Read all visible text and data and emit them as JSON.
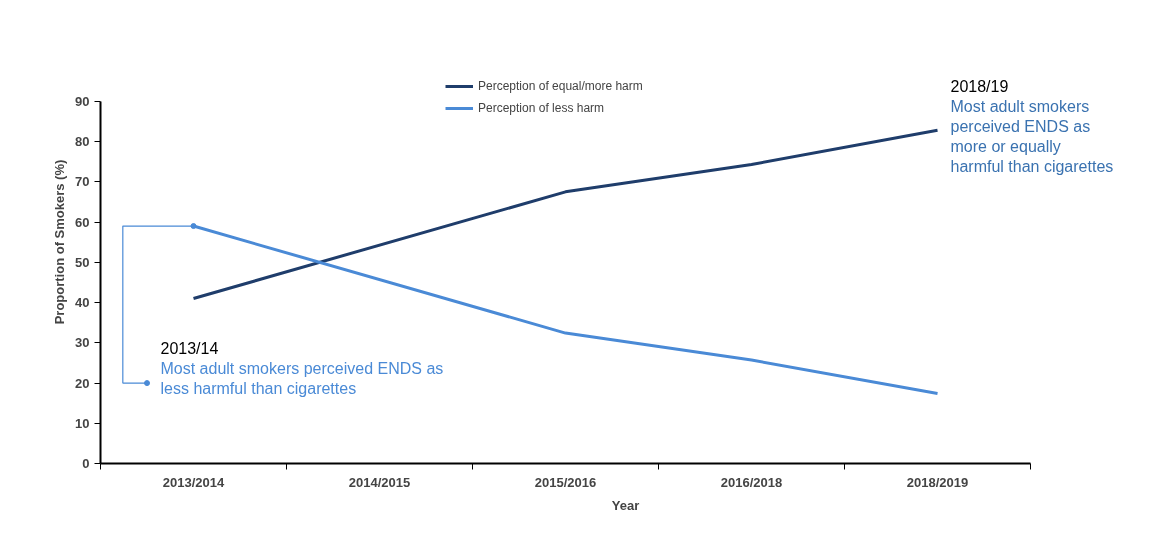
{
  "chart_data": {
    "type": "line",
    "xlabel": "Year",
    "ylabel": "Proportion of Smokers (%)",
    "categories": [
      "2013/2014",
      "2014/2015",
      "2015/2016",
      "2016/2018",
      "2018/2019"
    ],
    "series": [
      {
        "name": "Perception of equal/more harm",
        "color": "#1f3d6b",
        "values": [
          41,
          null,
          67.5,
          74.3,
          82.8
        ]
      },
      {
        "name": "Perception of less harm",
        "color": "#4a8ad6",
        "values": [
          59,
          null,
          32.4,
          25.7,
          17.4
        ]
      }
    ],
    "ylim": [
      0,
      90
    ],
    "yticks": [
      0,
      10,
      20,
      30,
      40,
      50,
      60,
      70,
      80,
      90
    ],
    "grid": false,
    "legend": "top",
    "marker": "none",
    "line_style": "solid",
    "annotations": [
      {
        "text": "2013/14\nMost adult smokers perceived ENDS as\nless harmful than cigarettes",
        "x": "2013/2014",
        "y": 59
      },
      {
        "text": "2018/19\nMost adult smokers\nperceived ENDS as\nmore or equally\nharmful than cigarettes",
        "x": "2018/2019",
        "y": 82.8
      }
    ]
  }
}
